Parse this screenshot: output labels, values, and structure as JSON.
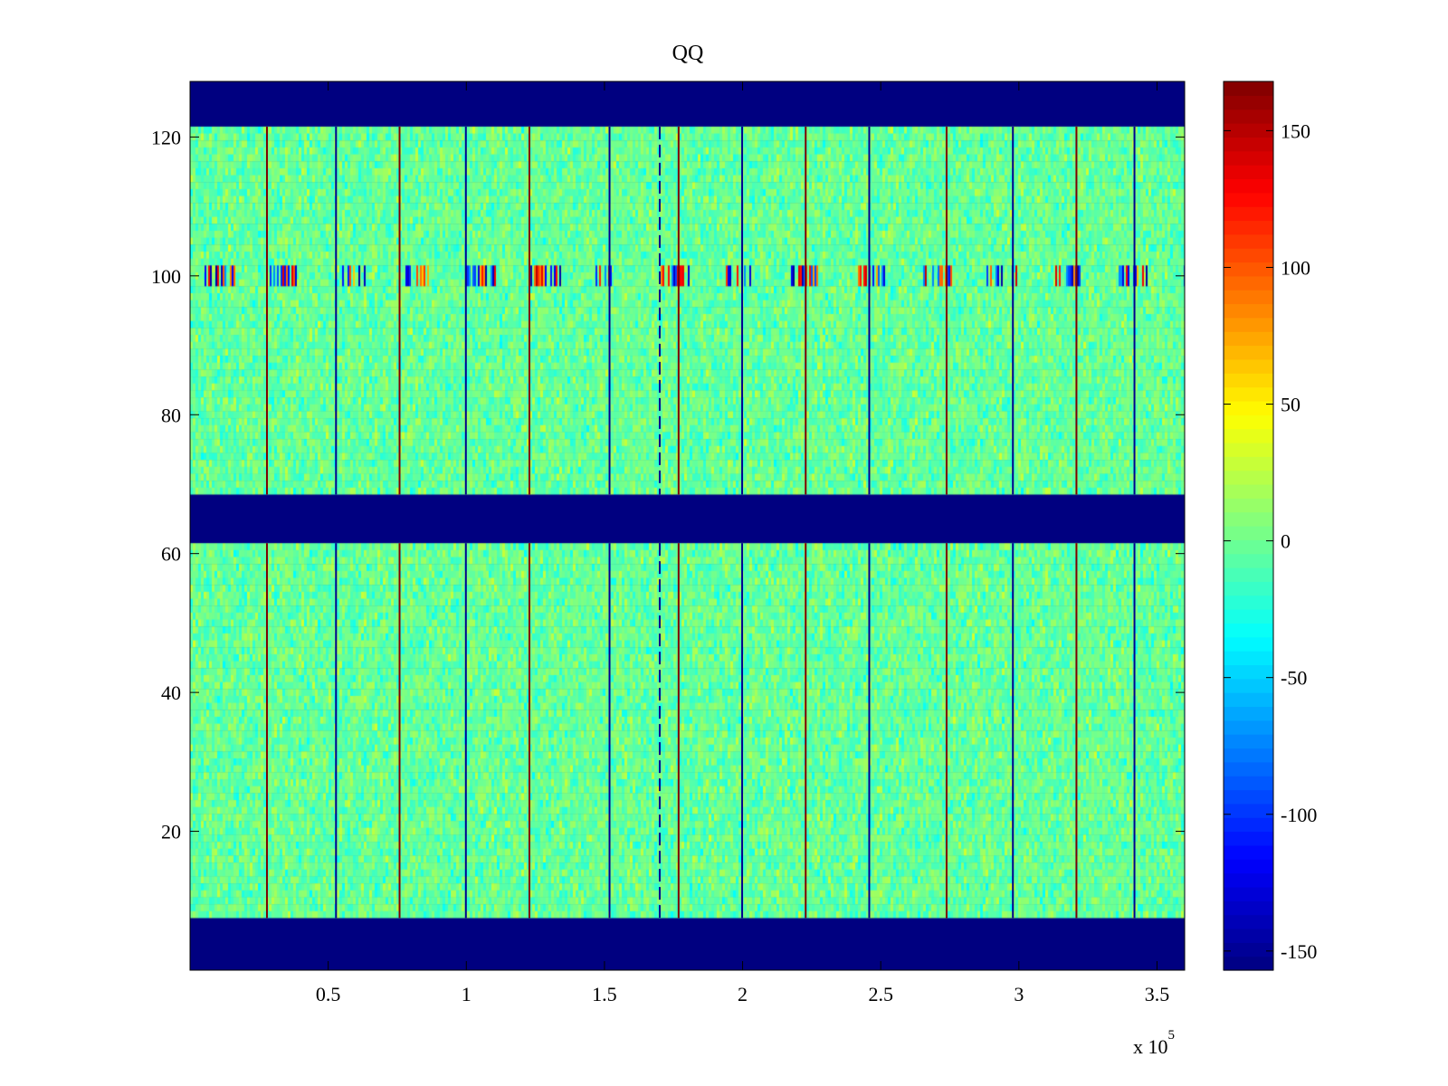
{
  "chart_data": {
    "type": "heatmap",
    "title": "QQ",
    "xlabel": "",
    "ylabel": "",
    "x_exponent_label": "x 10",
    "x_exponent": "5",
    "xlim": [
      0,
      3.6
    ],
    "ylim": [
      0,
      128
    ],
    "x_ticks": [
      0.5,
      1,
      1.5,
      2,
      2.5,
      3,
      3.5
    ],
    "x_tick_labels": [
      "0.5",
      "1",
      "1.5",
      "2",
      "2.5",
      "3",
      "3.5"
    ],
    "y_ticks": [
      20,
      40,
      60,
      80,
      100,
      120
    ],
    "y_tick_labels": [
      "20",
      "40",
      "60",
      "80",
      "100",
      "120"
    ],
    "colormap": "jet",
    "clim": [
      -157,
      168
    ],
    "colorbar": {
      "ticks": [
        150,
        100,
        50,
        0,
        -50,
        -100,
        -150
      ],
      "tick_labels": [
        "150",
        "100",
        "50",
        "0",
        "-50",
        "-100",
        "-150"
      ]
    },
    "empty_bands_y": [
      [
        0,
        7.5
      ],
      [
        61.5,
        68.5
      ],
      [
        121.5,
        128
      ]
    ],
    "active_bands_y": [
      [
        7.5,
        61.5
      ],
      [
        68.5,
        121.5
      ]
    ],
    "noise_value_range": [
      -40,
      35
    ],
    "vertical_spike_lines_x": [
      0.28,
      0.53,
      0.76,
      1.0,
      1.23,
      1.52,
      1.77,
      2.0,
      2.23,
      2.46,
      2.74,
      2.98,
      3.21,
      3.42
    ],
    "dashed_line_x": 1.7,
    "disturbed_row_y": [
      98.5,
      101.5
    ],
    "grid": false
  }
}
